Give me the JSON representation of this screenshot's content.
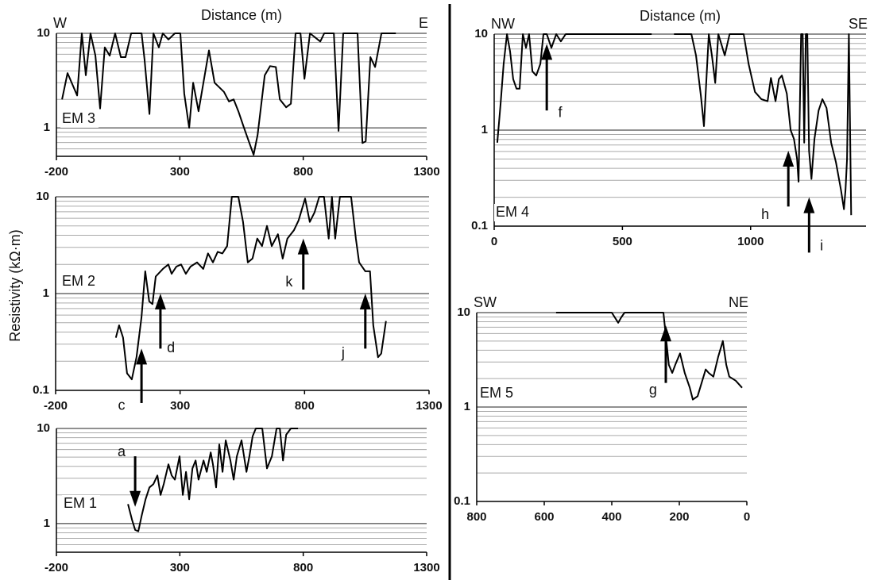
{
  "ylabel": "Resistivity (kΩ·m)",
  "chart_data": [
    {
      "type": "line",
      "label": "EM 3",
      "xlabel": "Distance (m)",
      "left_label": "W",
      "right_label": "E",
      "log_y": true,
      "grid": true,
      "color": "#000000",
      "xlim": [
        -200,
        1300
      ],
      "xticks": [
        -200,
        300,
        800,
        1300
      ],
      "ylim": [
        0.5,
        10
      ],
      "yticks": [
        1,
        10
      ],
      "minor_yticks": [
        0.6,
        0.7,
        0.8,
        0.9,
        2,
        3,
        4,
        5,
        6,
        7,
        8,
        9
      ],
      "x": [
        -177,
        -155,
        -116,
        -97,
        -81,
        -62,
        -42,
        -23,
        -4,
        16,
        38,
        61,
        80,
        103,
        145,
        157,
        177,
        193,
        215,
        231,
        254,
        280,
        302,
        318,
        338,
        354,
        376,
        418,
        441,
        479,
        499,
        518,
        537,
        560,
        582,
        599,
        615,
        644,
        666,
        689,
        705,
        731,
        750,
        769,
        789,
        805,
        827,
        869,
        885,
        924,
        943,
        962,
        1020,
        1040,
        1053,
        1072,
        1091,
        1117,
        1175
      ],
      "values": [
        2.0,
        3.8,
        2.2,
        10,
        3.6,
        10,
        5.8,
        1.6,
        7.1,
        5.8,
        10,
        5.6,
        5.6,
        10,
        10,
        5.3,
        1.4,
        10,
        7.1,
        10,
        8.6,
        10,
        10,
        2.3,
        1.0,
        3.0,
        1.5,
        6.6,
        3.0,
        2.4,
        1.9,
        2.0,
        1.5,
        1.0,
        0.69,
        0.52,
        0.84,
        3.6,
        4.5,
        4.4,
        2.0,
        1.65,
        1.8,
        10,
        10,
        3.3,
        10,
        8.2,
        10,
        10,
        0.93,
        10,
        10,
        0.69,
        0.72,
        5.6,
        4.4,
        10,
        10
      ],
      "annotations": []
    },
    {
      "type": "line",
      "label": "EM 2",
      "log_y": true,
      "grid": true,
      "color": "#000000",
      "xlim": [
        -200,
        1300
      ],
      "xticks": [
        -200,
        300,
        800,
        1300
      ],
      "ylim": [
        0.1,
        10
      ],
      "yticks": [
        0.1,
        1,
        10
      ],
      "minor_yticks": [
        0.2,
        0.3,
        0.4,
        0.5,
        0.6,
        0.7,
        0.8,
        0.9,
        2,
        3,
        4,
        5,
        6,
        7,
        8,
        9
      ],
      "x": [
        42,
        55,
        71,
        87,
        106,
        125,
        145,
        160,
        176,
        189,
        202,
        231,
        253,
        266,
        285,
        304,
        323,
        342,
        368,
        393,
        412,
        432,
        451,
        470,
        489,
        508,
        534,
        553,
        572,
        591,
        610,
        629,
        649,
        668,
        693,
        712,
        731,
        757,
        776,
        802,
        821,
        840,
        859,
        878,
        897,
        910,
        923,
        942,
        987,
        1006,
        1019,
        1044,
        1063,
        1076,
        1095,
        1108,
        1127
      ],
      "values": [
        0.35,
        0.47,
        0.35,
        0.15,
        0.13,
        0.22,
        0.57,
        1.7,
        0.83,
        0.78,
        1.5,
        1.8,
        2.0,
        1.6,
        1.9,
        2.0,
        1.6,
        1.9,
        2.1,
        1.8,
        2.6,
        2.1,
        2.7,
        2.6,
        3.1,
        10,
        10,
        5.5,
        2.1,
        2.3,
        3.7,
        3.1,
        5.0,
        3.1,
        4.1,
        2.3,
        3.7,
        4.5,
        5.7,
        9.6,
        5.5,
        6.9,
        10,
        10,
        3.7,
        10,
        3.7,
        10,
        10,
        3.7,
        2.1,
        1.7,
        1.7,
        0.47,
        0.22,
        0.24,
        0.52
      ],
      "annotations": [
        {
          "text": "c",
          "x": 145,
          "y": 0.27,
          "y_from": 0.074,
          "text_x": 65,
          "text_y": 0.069
        },
        {
          "text": "d",
          "x": 221,
          "y": 1.0,
          "y_from": 0.27,
          "text_x": 263,
          "text_y": 0.27
        },
        {
          "text": "k",
          "x": 795,
          "y": 3.7,
          "y_from": 1.1,
          "text_x": 738,
          "text_y": 1.3
        },
        {
          "text": "j",
          "x": 1044,
          "y": 1.0,
          "y_from": 0.27,
          "text_x": 955,
          "text_y": 0.24
        }
      ]
    },
    {
      "type": "line",
      "label": "EM 1",
      "log_y": true,
      "grid": true,
      "color": "#000000",
      "xlim": [
        -200,
        1300
      ],
      "xticks": [
        -200,
        300,
        800,
        1300
      ],
      "ylim": [
        0.5,
        10
      ],
      "yticks": [
        1,
        10
      ],
      "minor_yticks": [
        0.6,
        0.7,
        0.8,
        0.9,
        2,
        3,
        4,
        5,
        6,
        7,
        8,
        9
      ],
      "x": [
        90,
        106,
        119,
        132,
        145,
        161,
        177,
        193,
        209,
        222,
        235,
        254,
        267,
        280,
        299,
        312,
        325,
        338,
        351,
        364,
        376,
        396,
        409,
        425,
        434,
        447,
        460,
        473,
        486,
        505,
        518,
        531,
        550,
        570,
        582,
        595,
        608,
        634,
        653,
        673,
        692,
        705,
        718,
        731,
        750,
        779
      ],
      "values": [
        1.6,
        1.1,
        0.86,
        0.83,
        1.2,
        1.8,
        2.4,
        2.6,
        3.2,
        2.0,
        2.6,
        4.2,
        3.2,
        2.9,
        5.1,
        2.0,
        3.5,
        1.8,
        3.8,
        4.6,
        2.9,
        4.6,
        3.5,
        5.6,
        4.2,
        2.4,
        6.8,
        3.5,
        7.5,
        4.6,
        2.9,
        5.1,
        7.5,
        3.5,
        5.1,
        8.3,
        10,
        10,
        3.8,
        5.1,
        10,
        10,
        4.6,
        8.6,
        10,
        10
      ],
      "annotations": [
        {
          "text": "a",
          "x": 119,
          "y": 1.5,
          "y_from": 5.1,
          "text_x": 64,
          "text_y": 5.6
        }
      ]
    },
    {
      "type": "line",
      "label": "EM 4",
      "xlabel": "Distance (m)",
      "left_label": "NW",
      "right_label": "SE",
      "log_y": true,
      "grid": true,
      "color": "#000000",
      "xlim": [
        0,
        1450
      ],
      "xticks": [
        0,
        500,
        1000
      ],
      "ylim": [
        0.1,
        10
      ],
      "yticks": [
        0.1,
        1,
        10
      ],
      "minor_yticks": [
        0.2,
        0.3,
        0.4,
        0.5,
        0.6,
        0.7,
        0.8,
        0.9,
        2,
        3,
        4,
        5,
        6,
        7,
        8,
        9
      ],
      "x": [
        12,
        25,
        37,
        50,
        62,
        74,
        87,
        99,
        112,
        124,
        136,
        149,
        164,
        180,
        192,
        205,
        223,
        242,
        260,
        279,
        304,
        614,
        660,
        701,
        769,
        787,
        806,
        818,
        837,
        849,
        862,
        874,
        899,
        918,
        973,
        992,
        1017,
        1042,
        1066,
        1079,
        1097,
        1110,
        1122,
        1141,
        1156,
        1169,
        1181,
        1187,
        1197,
        1203,
        1209,
        1215,
        1221,
        1228,
        1237,
        1249,
        1265,
        1280,
        1296,
        1314,
        1333,
        1352,
        1364,
        1370,
        1376,
        1383,
        1392
      ],
      "values": [
        0.74,
        1.9,
        4.9,
        10,
        6.6,
        3.4,
        2.7,
        2.7,
        10,
        7.2,
        10,
        4.1,
        3.7,
        4.9,
        10,
        10,
        7.2,
        10,
        8.4,
        10,
        10,
        10,
        null,
        10,
        10,
        6.0,
        2.3,
        1.1,
        10,
        6.0,
        3.1,
        10,
        6.0,
        10,
        10,
        4.9,
        2.5,
        2.1,
        2.0,
        3.5,
        2.0,
        3.4,
        3.7,
        2.4,
        1.0,
        0.81,
        0.5,
        0.29,
        10,
        10,
        0.74,
        10,
        10,
        0.61,
        0.31,
        0.81,
        1.6,
        2.1,
        1.7,
        0.74,
        0.46,
        0.24,
        0.15,
        0.24,
        0.5,
        10,
        0.13
      ],
      "annotations": [
        {
          "text": "f",
          "x": 205,
          "y": 7.9,
          "y_from": 1.6,
          "text_x": 257,
          "text_y": 1.5
        },
        {
          "text": "h",
          "x": 1147,
          "y": 0.61,
          "y_from": 0.16,
          "text_x": 1057,
          "text_y": 0.13
        },
        {
          "text": "i",
          "x": 1228,
          "y": 0.2,
          "y_from": 0.053,
          "text_x": 1277,
          "text_y": 0.061
        }
      ]
    },
    {
      "type": "line",
      "label": "EM 5",
      "left_label": "SW",
      "right_label": "NE",
      "log_y": true,
      "grid": true,
      "color": "#000000",
      "xlim": [
        800,
        0
      ],
      "xticks": [
        800,
        600,
        400,
        200,
        0
      ],
      "ylim": [
        0.1,
        10
      ],
      "yticks": [
        0.1,
        1,
        10
      ],
      "minor_yticks": [
        0.2,
        0.3,
        0.4,
        0.5,
        0.6,
        0.7,
        0.8,
        0.9,
        2,
        3,
        4,
        5,
        6,
        7,
        8,
        9
      ],
      "x": [
        565,
        400,
        391,
        381,
        372,
        362,
        247,
        231,
        221,
        212,
        198,
        184,
        169,
        160,
        146,
        132,
        122,
        113,
        99,
        85,
        71,
        61,
        52,
        33,
        14
      ],
      "values": [
        10,
        10,
        8.9,
        7.8,
        8.9,
        10,
        10,
        2.8,
        2.3,
        2.8,
        3.7,
        2.3,
        1.6,
        1.2,
        1.3,
        1.9,
        2.5,
        2.3,
        2.1,
        3.4,
        5.0,
        2.8,
        2.1,
        1.9,
        1.6
      ],
      "annotations": [
        {
          "text": "g",
          "x": 240,
          "y": 7.3,
          "y_from": 1.8,
          "text_x": 278,
          "text_y": 1.5
        }
      ]
    }
  ]
}
